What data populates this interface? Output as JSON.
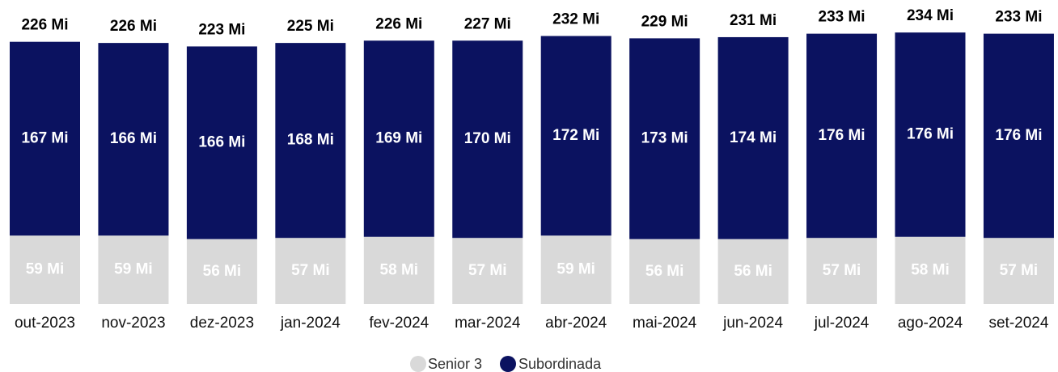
{
  "chart_data": {
    "type": "stacked_bar",
    "categories": [
      "out-2023",
      "nov-2023",
      "dez-2023",
      "jan-2024",
      "fev-2024",
      "mar-2024",
      "abr-2024",
      "mai-2024",
      "jun-2024",
      "jul-2024",
      "ago-2024",
      "set-2024"
    ],
    "series": [
      {
        "name": "Senior 3",
        "color": "#d9d9d9",
        "values": [
          59,
          59,
          56,
          57,
          58,
          57,
          59,
          56,
          56,
          57,
          58,
          57
        ],
        "value_labels": [
          "59 Mi",
          "59 Mi",
          "56 Mi",
          "57 Mi",
          "58 Mi",
          "57 Mi",
          "59 Mi",
          "56 Mi",
          "56 Mi",
          "57 Mi",
          "58 Mi",
          "57 Mi"
        ]
      },
      {
        "name": "Subordinada",
        "color": "#0b1260",
        "values": [
          167,
          166,
          166,
          168,
          169,
          170,
          172,
          173,
          174,
          176,
          176,
          176
        ],
        "value_labels": [
          "167 Mi",
          "166 Mi",
          "166 Mi",
          "168 Mi",
          "169 Mi",
          "170 Mi",
          "172 Mi",
          "173 Mi",
          "174 Mi",
          "176 Mi",
          "176 Mi",
          "176 Mi"
        ]
      }
    ],
    "totals": [
      226,
      226,
      223,
      225,
      226,
      227,
      232,
      229,
      231,
      233,
      234,
      233
    ],
    "total_labels": [
      "226 Mi",
      "226 Mi",
      "223 Mi",
      "225 Mi",
      "226 Mi",
      "227 Mi",
      "232 Mi",
      "229 Mi",
      "231 Mi",
      "233 Mi",
      "234 Mi",
      "233 Mi"
    ],
    "legend": "bottom"
  }
}
